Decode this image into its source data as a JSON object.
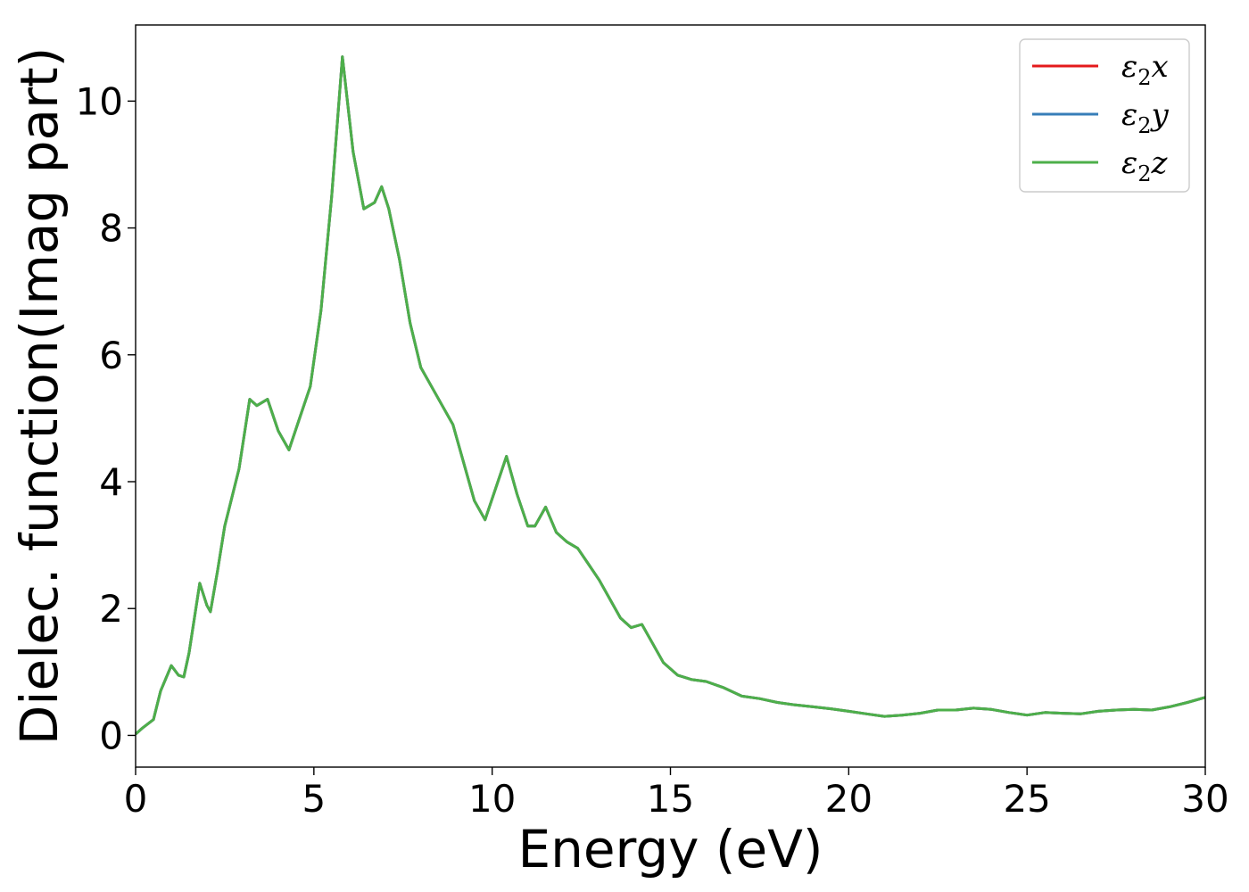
{
  "chart_data": {
    "type": "line",
    "title": "",
    "xlabel": "Energy (eV)",
    "ylabel": "Dielec. function(Imag part)",
    "xlim": [
      0,
      30
    ],
    "ylim": [
      -0.5,
      11.2
    ],
    "xticks": [
      0,
      5,
      10,
      15,
      20,
      25,
      30
    ],
    "yticks": [
      0,
      2,
      4,
      6,
      8,
      10
    ],
    "grid": false,
    "legend": "top-right",
    "series": [
      {
        "name": "ε₂x",
        "legend_base": "ε",
        "legend_sub": "2",
        "legend_var": "x",
        "color": "#e41a1c"
      },
      {
        "name": "ε₂y",
        "legend_base": "ε",
        "legend_sub": "2",
        "legend_var": "y",
        "color": "#377eb8"
      },
      {
        "name": "ε₂z",
        "legend_base": "ε",
        "legend_sub": "2",
        "legend_var": "z",
        "color": "#4daf4a"
      }
    ],
    "x": [
      0,
      0.2,
      0.5,
      0.7,
      1.0,
      1.2,
      1.35,
      1.5,
      1.8,
      2.0,
      2.1,
      2.3,
      2.5,
      2.9,
      3.2,
      3.4,
      3.7,
      4.0,
      4.3,
      4.6,
      4.9,
      5.2,
      5.5,
      5.8,
      6.1,
      6.4,
      6.7,
      6.9,
      7.1,
      7.4,
      7.7,
      8.0,
      8.3,
      8.6,
      8.9,
      9.2,
      9.5,
      9.8,
      10.1,
      10.4,
      10.7,
      11.0,
      11.2,
      11.5,
      11.8,
      12.1,
      12.4,
      12.7,
      13.0,
      13.3,
      13.6,
      13.9,
      14.2,
      14.5,
      14.8,
      15.2,
      15.6,
      16.0,
      16.5,
      17.0,
      17.5,
      18.0,
      18.5,
      19.0,
      19.5,
      20.0,
      20.5,
      21.0,
      21.5,
      22.0,
      22.5,
      23.0,
      23.5,
      24.0,
      24.5,
      25.0,
      25.5,
      26.0,
      26.5,
      27.0,
      27.5,
      28.0,
      28.5,
      29.0,
      29.5,
      30.0
    ],
    "y": [
      0.02,
      0.12,
      0.25,
      0.7,
      1.1,
      0.95,
      0.92,
      1.3,
      2.4,
      2.05,
      1.95,
      2.6,
      3.3,
      4.2,
      5.3,
      5.2,
      5.3,
      4.8,
      4.5,
      5.0,
      5.5,
      6.7,
      8.5,
      10.7,
      9.2,
      8.3,
      8.4,
      8.65,
      8.3,
      7.5,
      6.5,
      5.8,
      5.5,
      5.2,
      4.9,
      4.3,
      3.7,
      3.4,
      3.9,
      4.4,
      3.8,
      3.3,
      3.3,
      3.6,
      3.2,
      3.05,
      2.95,
      2.7,
      2.45,
      2.15,
      1.85,
      1.7,
      1.75,
      1.45,
      1.15,
      0.95,
      0.88,
      0.85,
      0.75,
      0.62,
      0.58,
      0.52,
      0.48,
      0.45,
      0.42,
      0.38,
      0.34,
      0.3,
      0.32,
      0.35,
      0.4,
      0.4,
      0.43,
      0.41,
      0.36,
      0.32,
      0.36,
      0.35,
      0.34,
      0.38,
      0.4,
      0.41,
      0.4,
      0.45,
      0.52,
      0.6
    ]
  }
}
